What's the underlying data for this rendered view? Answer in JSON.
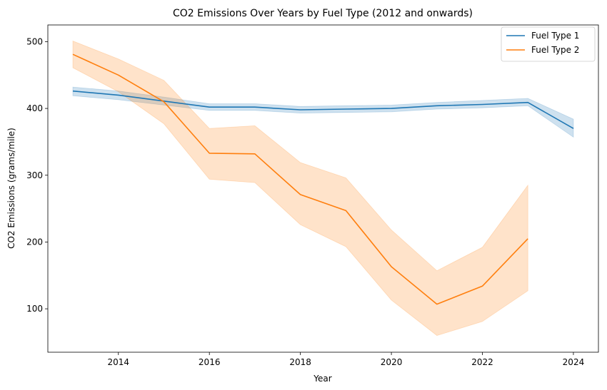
{
  "chart_data": {
    "type": "line",
    "title": "CO2 Emissions Over Years by Fuel Type (2012 and onwards)",
    "xlabel": "Year",
    "ylabel": "CO2 Emissions (grams/mile)",
    "xlim": [
      2012.45,
      2024.55
    ],
    "ylim": [
      35,
      525
    ],
    "xticks": [
      2014,
      2016,
      2018,
      2020,
      2022,
      2024
    ],
    "yticks": [
      100,
      200,
      300,
      400,
      500
    ],
    "grid": false,
    "legend_position": "top-right",
    "series": [
      {
        "name": "Fuel Type 1",
        "color": "#1f77b4",
        "x": [
          2013,
          2014,
          2015,
          2016,
          2017,
          2018,
          2019,
          2020,
          2021,
          2022,
          2023,
          2024
        ],
        "y": [
          426,
          420,
          411,
          402,
          402,
          398,
          399,
          400,
          404,
          406,
          409,
          370
        ],
        "ci_low": [
          419,
          413,
          405,
          397,
          397,
          393,
          394,
          395,
          399,
          401,
          404,
          357
        ],
        "ci_high": [
          432,
          426,
          417,
          407,
          407,
          403,
          404,
          405,
          409,
          412,
          415,
          384
        ]
      },
      {
        "name": "Fuel Type 2",
        "color": "#ff7f0e",
        "x": [
          2013,
          2014,
          2015,
          2016,
          2017,
          2018,
          2019,
          2020,
          2021,
          2022,
          2023
        ],
        "y": [
          481,
          450,
          410,
          333,
          332,
          271,
          247,
          163,
          107,
          134,
          205
        ],
        "ci_low": [
          461,
          425,
          377,
          294,
          289,
          226,
          193,
          113,
          60,
          81,
          127
        ],
        "ci_high": [
          501,
          474,
          442,
          370,
          374,
          319,
          296,
          218,
          157,
          192,
          285
        ]
      }
    ]
  }
}
